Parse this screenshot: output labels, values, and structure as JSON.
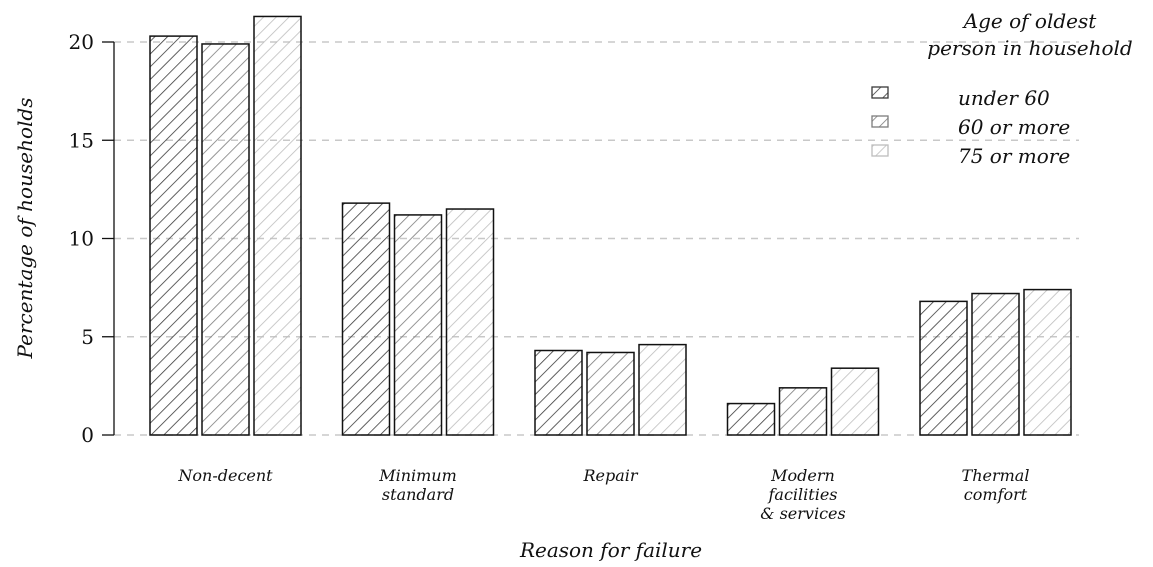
{
  "chart_data": {
    "type": "bar",
    "categories": [
      [
        "Non-decent"
      ],
      [
        "Minimum",
        "standard"
      ],
      [
        "Repair"
      ],
      [
        "Modern",
        "facilities",
        "& services"
      ],
      [
        "Thermal",
        "comfort"
      ]
    ],
    "series": [
      {
        "name": "under 60",
        "values": [
          20.3,
          11.8,
          4.3,
          1.6,
          6.8
        ],
        "color": "#3a3a3a"
      },
      {
        "name": "60 or more",
        "values": [
          19.9,
          11.2,
          4.2,
          2.4,
          7.2
        ],
        "color": "#7c7c7c"
      },
      {
        "name": "75 or more",
        "values": [
          21.3,
          11.5,
          4.6,
          3.4,
          7.4
        ],
        "color": "#bdbdbd"
      }
    ],
    "xlabel": "Reason for failure",
    "ylabel": "Percentage of households",
    "ylim": [
      0,
      22
    ],
    "yticks": [
      0,
      5,
      10,
      15,
      20
    ],
    "legend_title": [
      "Age of oldest",
      "person in household"
    ],
    "legend_position": "top-right",
    "grid": "horizontal-dashed"
  }
}
